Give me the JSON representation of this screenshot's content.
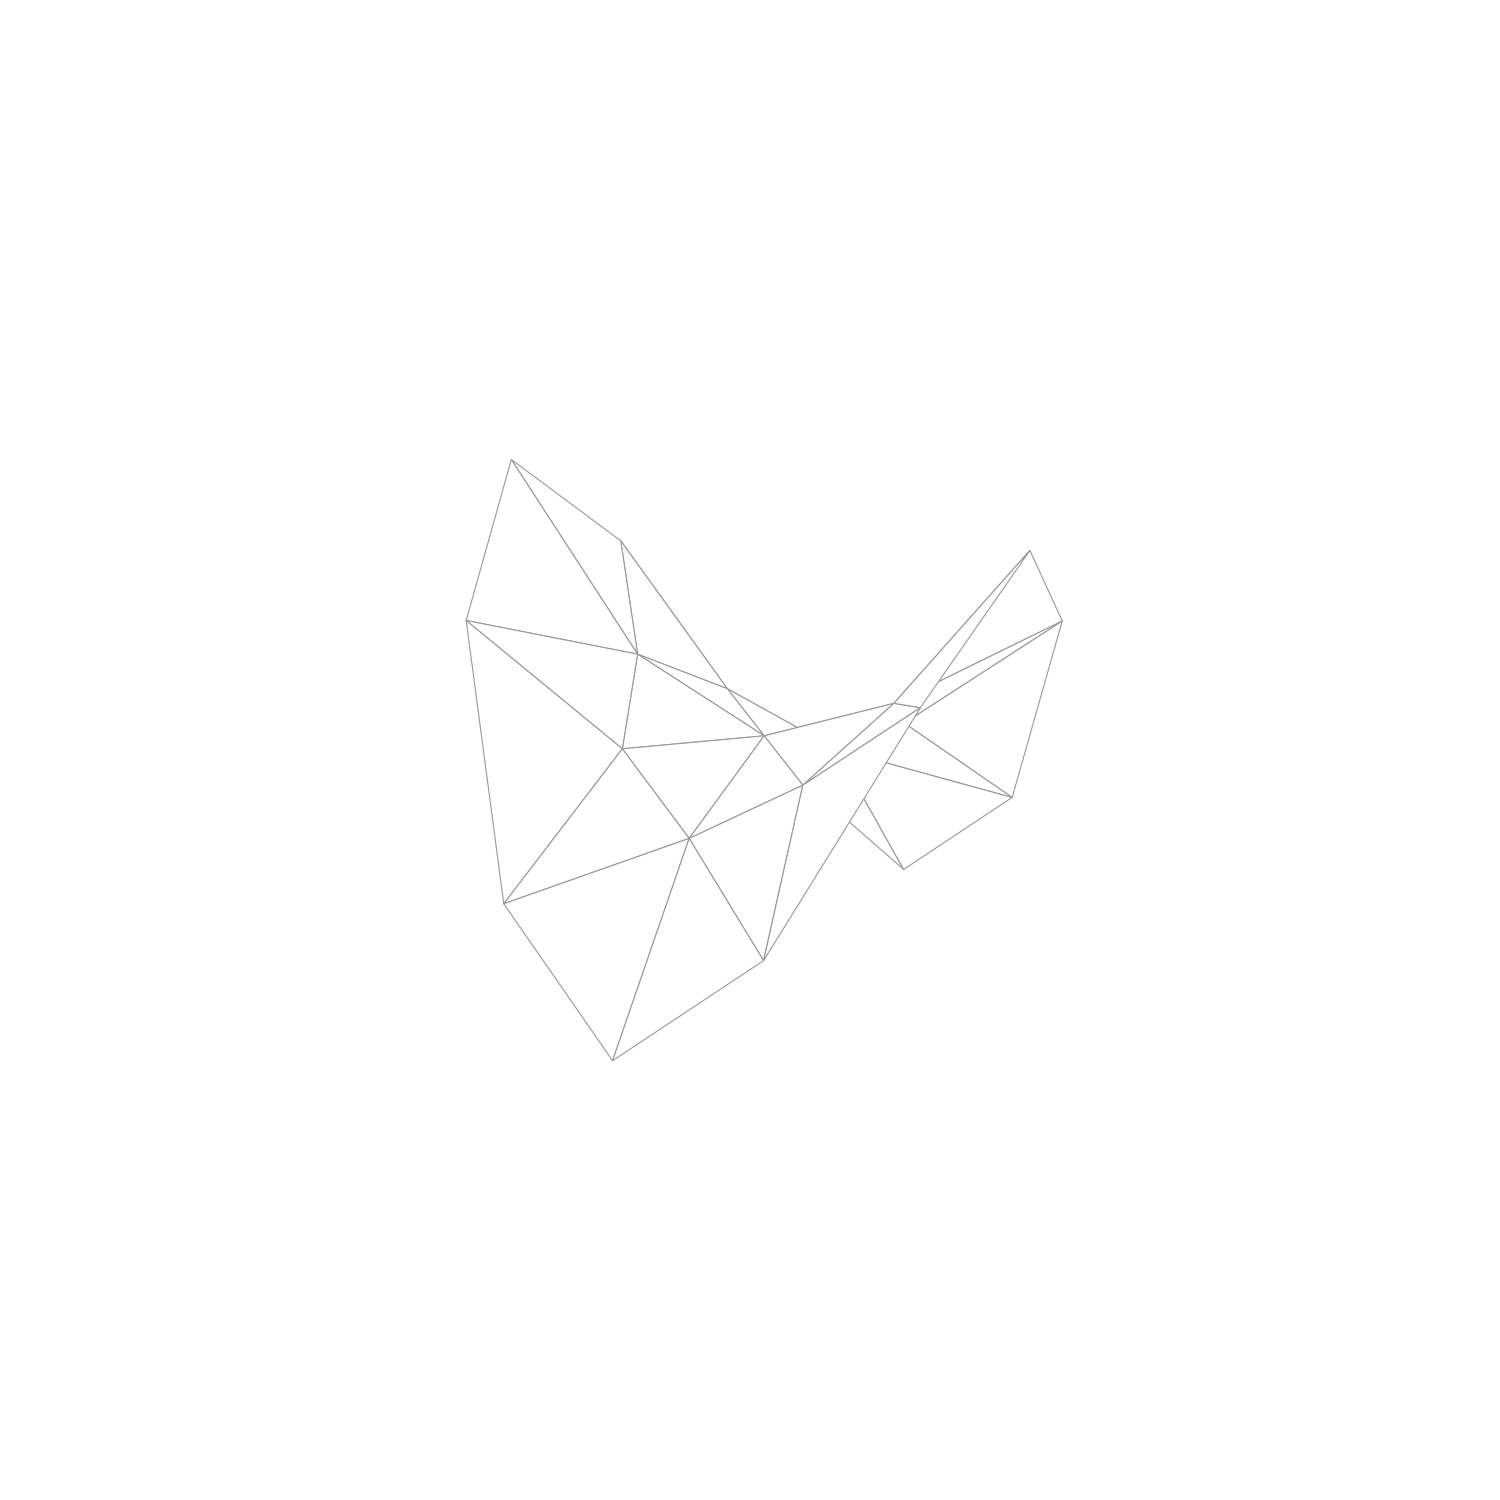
{
  "chart_data": {
    "type": "surface",
    "tick_labels": false,
    "color": "#ffffff",
    "x": [
      0,
      0.5,
      0.35,
      0,
      -0.35,
      -0.5,
      -0.35,
      0,
      0.35,
      1,
      0.87,
      0.5,
      0,
      -0.5,
      -0.87,
      -1,
      -0.87,
      -0.5,
      0,
      0.5,
      0.87
    ],
    "y": [
      0,
      0,
      0.35,
      0.5,
      0.35,
      0,
      -0.35,
      -0.5,
      -0.35,
      0,
      0.5,
      0.87,
      1,
      0.87,
      0.5,
      0,
      -0.5,
      -0.87,
      -1,
      -0.87,
      -0.5
    ],
    "z": [
      0,
      0.25,
      0,
      -0.25,
      0,
      0.25,
      0,
      -0.25,
      0,
      1,
      0.5,
      -0.5,
      -1,
      -0.5,
      0.5,
      1,
      0.5,
      -0.5,
      -1,
      -0.5,
      0.5
    ]
  }
}
